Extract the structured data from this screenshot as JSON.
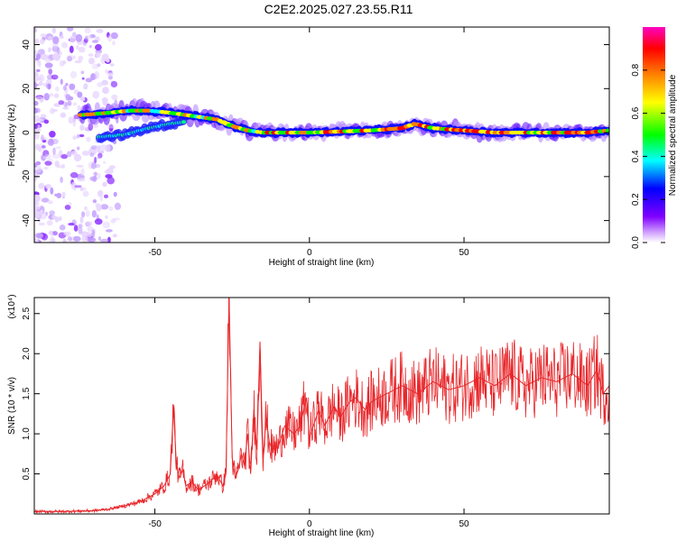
{
  "title": "C2E2.2025.027.23.55.R11",
  "chart_data": [
    {
      "type": "heatmap",
      "title": "C2E2.2025.027.23.55.R11",
      "xlabel": "Height of straight line (km)",
      "ylabel": "Frequency (Hz)",
      "xlim": [
        -89,
        97
      ],
      "ylim": [
        -50,
        48
      ],
      "x_ticks": [
        -50,
        0,
        50
      ],
      "y_ticks": [
        -40,
        -20,
        0,
        20,
        40
      ],
      "colorbar": {
        "label": "Normalized spectral amplitude",
        "range": [
          0,
          1
        ],
        "ticks": [
          "0.0",
          "0.2",
          "0.4",
          "0.6",
          "0.8"
        ],
        "colormap": [
          "#ffffff",
          "#8000ff",
          "#0000ff",
          "#00ffff",
          "#00ff00",
          "#ffff00",
          "#ff8000",
          "#ff0000",
          "#ff00c0"
        ]
      },
      "ridge": {
        "x": [
          -74,
          -65,
          -58,
          -52,
          -45,
          -40,
          -35,
          -30,
          -25,
          -20,
          -15,
          -10,
          -5,
          0,
          10,
          20,
          30,
          34,
          40,
          50,
          60,
          70,
          80,
          90,
          97
        ],
        "y": [
          8,
          9,
          10,
          10,
          9,
          8,
          7,
          6,
          3,
          1,
          0,
          0,
          0,
          0,
          0.5,
          1,
          2,
          4,
          2,
          1,
          0,
          0,
          0,
          0,
          1
        ]
      },
      "ridge_lower_branch": {
        "x": [
          -68,
          -60,
          -52,
          -45,
          -40
        ],
        "y": [
          -2,
          -1,
          2,
          4,
          5
        ]
      },
      "grid": false
    },
    {
      "type": "line",
      "xlabel": "Height of straight line (km)",
      "ylabel": "SNR (10 * v/v)",
      "y_multiplier": "(x10⁴)",
      "xlim": [
        -89,
        97
      ],
      "ylim": [
        0,
        2.7
      ],
      "x_ticks": [
        -50,
        0,
        50
      ],
      "y_ticks": [
        "0.5",
        "1.0",
        "1.5",
        "2.0",
        "2.5"
      ],
      "color": "#e8262a",
      "series": [
        {
          "x": [
            -89,
            -80,
            -70,
            -65,
            -60,
            -55,
            -50,
            -47,
            -45,
            -44,
            -43,
            -42,
            -41,
            -40,
            -38,
            -36,
            -34,
            -32,
            -30,
            -28,
            -27,
            -26,
            -25,
            -24,
            -23,
            -22,
            -21,
            -20,
            -19,
            -18,
            -17,
            -16,
            -15,
            -14,
            -13,
            -12,
            -10,
            -8,
            -5,
            -3,
            -1,
            0,
            3,
            5,
            8,
            10,
            13,
            15,
            18,
            20,
            25,
            30,
            35,
            40,
            45,
            50,
            55,
            60,
            65,
            70,
            75,
            80,
            85,
            90,
            93,
            95,
            97
          ],
          "y": [
            0.03,
            0.03,
            0.04,
            0.06,
            0.1,
            0.15,
            0.25,
            0.35,
            0.5,
            1.33,
            0.6,
            0.45,
            0.55,
            0.35,
            0.4,
            0.3,
            0.35,
            0.4,
            0.5,
            0.35,
            0.5,
            2.7,
            0.7,
            0.45,
            0.55,
            0.75,
            0.6,
            1.0,
            0.5,
            1.3,
            0.8,
            2.15,
            0.7,
            1.2,
            0.9,
            0.8,
            0.85,
            1.1,
            1.0,
            1.1,
            1.45,
            0.95,
            1.3,
            1.1,
            1.35,
            1.2,
            1.4,
            1.45,
            1.3,
            1.4,
            1.5,
            1.6,
            1.5,
            1.65,
            1.55,
            1.6,
            1.7,
            1.6,
            1.75,
            1.6,
            1.7,
            1.65,
            1.75,
            1.6,
            1.8,
            1.5,
            1.6
          ]
        }
      ]
    }
  ]
}
